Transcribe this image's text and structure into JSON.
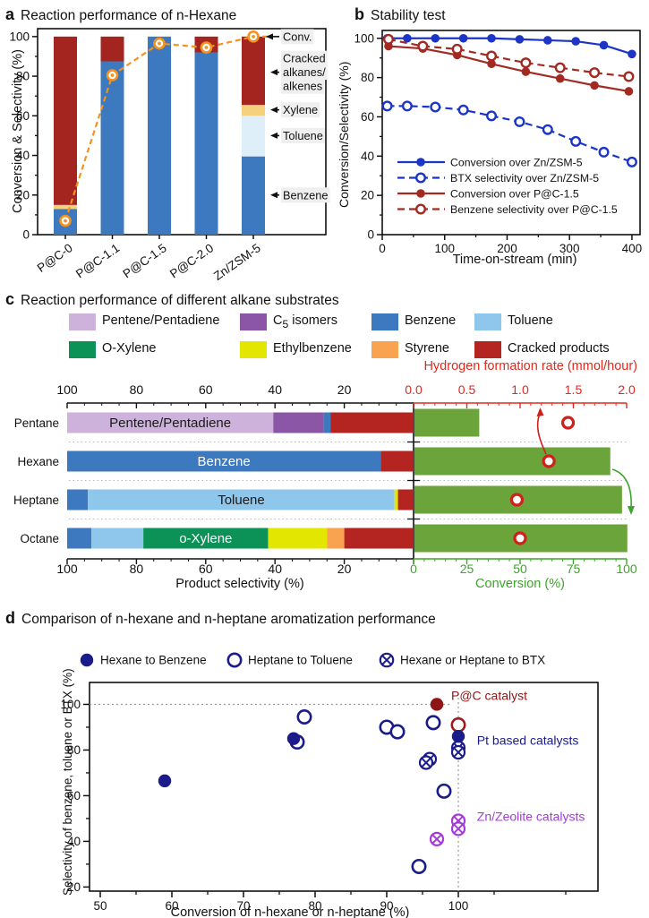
{
  "chart_data": [
    {
      "id": "a",
      "type": "bar",
      "panel_label": "a",
      "title": "Reaction performance of n-Hexane",
      "ylabel": "Conversion & Selectivity (%)",
      "ylim": [
        0,
        104
      ],
      "yticks": [
        0,
        20,
        40,
        60,
        80,
        100
      ],
      "categories": [
        "P@C-0",
        "P@C-1.1",
        "P@C-1.5",
        "P@C-2.0",
        "Zn/ZSM-5"
      ],
      "stack_series": [
        {
          "name": "Benzene",
          "color": "#3C79BE",
          "values": [
            13,
            87.5,
            100,
            92,
            39.5
          ]
        },
        {
          "name": "Toluene",
          "color": "#DEEFFA",
          "values": [
            0,
            0,
            0,
            0,
            20.5
          ]
        },
        {
          "name": "Xylene",
          "color": "#F5D17D",
          "values": [
            2,
            0,
            0,
            0,
            5.5
          ]
        },
        {
          "name": "Cracked alkanes/alkenes",
          "color": "#A4251F",
          "values": [
            85,
            12.5,
            0,
            8,
            34.5
          ]
        }
      ],
      "line_series": {
        "name": "Conv.",
        "color": "#F5921E",
        "values": [
          7,
          80.5,
          96.5,
          94.5,
          100
        ]
      },
      "annotations": [
        {
          "lines": [
            "Conv."
          ],
          "y": 100
        },
        {
          "lines": [
            "Cracked",
            "alkanes/",
            "alkenes"
          ],
          "y": 82
        },
        {
          "lines": [
            "Xylene"
          ],
          "y": 63
        },
        {
          "lines": [
            "Toluene"
          ],
          "y": 50
        },
        {
          "lines": [
            "Benzene"
          ],
          "y": 20
        }
      ],
      "label_bg": "#EFEFEF"
    },
    {
      "id": "b",
      "type": "line",
      "panel_label": "b",
      "title": "Stability test",
      "xlabel": "Time-on-stream (min)",
      "ylabel": "Conversion/Selectivity (%)",
      "xlim": [
        0,
        413
      ],
      "ylim": [
        0,
        104
      ],
      "xticks": [
        0,
        100,
        200,
        300,
        400
      ],
      "yticks": [
        0,
        20,
        40,
        60,
        80,
        100
      ],
      "series": [
        {
          "name": "Conversion over Zn/ZSM-5",
          "color": "#1C35C4",
          "marker": "filled",
          "dash": false,
          "x": [
            8,
            40,
            85,
            130,
            175,
            220,
            265,
            310,
            355,
            400
          ],
          "y": [
            100,
            100,
            100,
            100,
            100,
            99.5,
            99,
            98.5,
            96.5,
            92
          ]
        },
        {
          "name": "BTX selectivity over Zn/ZSM-5",
          "color": "#1C35C4",
          "marker": "open",
          "dash": true,
          "x": [
            8,
            40,
            85,
            130,
            175,
            220,
            265,
            310,
            355,
            400
          ],
          "y": [
            65.5,
            65.5,
            65,
            63.5,
            60.5,
            57.5,
            53.5,
            47.5,
            42,
            37
          ]
        },
        {
          "name": "Conversion over P@C-1.5",
          "color": "#A32A22",
          "marker": "filled",
          "dash": false,
          "x": [
            10,
            65,
            120,
            175,
            230,
            285,
            340,
            395
          ],
          "y": [
            96,
            94.8,
            91.5,
            87,
            83,
            79.5,
            76,
            73
          ]
        },
        {
          "name": "Benzene selectivity over P@C-1.5",
          "color": "#A32A22",
          "marker": "open",
          "dash": true,
          "x": [
            10,
            65,
            120,
            175,
            230,
            285,
            340,
            395
          ],
          "y": [
            99.5,
            96,
            94.5,
            91,
            87.5,
            85,
            82.5,
            80.5
          ]
        }
      ]
    },
    {
      "id": "c",
      "type": "bar",
      "panel_label": "c",
      "title": "Reaction performance of different alkane substrates",
      "categories": [
        "Pentane",
        "Hexane",
        "Heptane",
        "Octane"
      ],
      "legend": [
        {
          "name": "Pentene/Pentadiene",
          "color": "#CDB3DB"
        },
        {
          "name": "C5 isomers",
          "pre": "C",
          "sub": "5",
          "post": " isomers",
          "color": "#8A56A5"
        },
        {
          "name": "Benzene",
          "color": "#3C79BE"
        },
        {
          "name": "Toluene",
          "color": "#8FC6EC"
        },
        {
          "name": "O-Xylene",
          "color": "#0C9157"
        },
        {
          "name": "Ethylbenzene",
          "color": "#E3E600"
        },
        {
          "name": "Styrene",
          "color": "#F9A351"
        },
        {
          "name": "Cracked products",
          "color": "#B42421"
        }
      ],
      "stack_series": [
        {
          "name": "Pentene/Pentadiene",
          "color": "#CDB3DB",
          "values": [
            59.5,
            0,
            0,
            0
          ]
        },
        {
          "name": "C5 isomers",
          "color": "#8A56A5",
          "values": [
            14.5,
            0,
            0,
            0
          ]
        },
        {
          "name": "Benzene",
          "color": "#3C79BE",
          "values": [
            2,
            90.5,
            6,
            7
          ]
        },
        {
          "name": "Toluene",
          "color": "#8FC6EC",
          "values": [
            0,
            0,
            88.5,
            15
          ]
        },
        {
          "name": "O-Xylene",
          "color": "#0C9157",
          "values": [
            0,
            0,
            0,
            36
          ]
        },
        {
          "name": "Ethylbenzene",
          "color": "#E3E600",
          "values": [
            0,
            0,
            1,
            17
          ]
        },
        {
          "name": "Styrene",
          "color": "#F9A351",
          "values": [
            0,
            0,
            0,
            5
          ]
        },
        {
          "name": "Cracked products",
          "color": "#B42421",
          "values": [
            24,
            9.5,
            4.5,
            20
          ]
        }
      ],
      "bar_labels": [
        {
          "series": "Pentene/Pentadiene",
          "text": "Pentene/Pentadiene",
          "color": "#1a1a1a"
        },
        {
          "series": "Benzene",
          "text": "Benzene",
          "color": "#ffffff"
        },
        {
          "series": "Toluene",
          "text": "Toluene",
          "color": "#1a1a1a"
        },
        {
          "series": "O-Xylene",
          "text": "o-Xylene",
          "color": "#ffffff"
        }
      ],
      "selectivity_axis": {
        "label": "Product selectivity (%)",
        "ticks": [
          100,
          80,
          60,
          40,
          20
        ]
      },
      "conversion": {
        "label": "Conversion (%)",
        "color": "#3FA32D",
        "bar_color": "#6BA43B",
        "ticks": [
          0,
          25,
          50,
          75,
          100
        ],
        "values": [
          30.5,
          92,
          97.5,
          100
        ]
      },
      "h2": {
        "label": "Hydrogen formation rate (mmol/hour)",
        "color": "#E2291D",
        "circle_color": "#D0201A",
        "tick_labels": [
          "0.0",
          "0.5",
          "1.0",
          "1.5",
          "2.0"
        ],
        "range": [
          0,
          2
        ],
        "values": [
          1.45,
          1.27,
          0.97,
          1.0
        ]
      }
    },
    {
      "id": "d",
      "type": "scatter",
      "panel_label": "d",
      "title": "Comparison of n-hexane and n-heptane aromatization performance",
      "xlabel": "Conversion of n-hexane or n-heptane (%)",
      "ylabel": "Selectivity of benzene, toluene or BTX (%)",
      "xticks": [
        50,
        60,
        70,
        80,
        90,
        100
      ],
      "yticks": [
        20,
        40,
        60,
        80,
        100
      ],
      "ref_lines": {
        "x": 100,
        "y": 100
      },
      "legend": [
        {
          "label": "Hexane to Benzene",
          "marker": "filled",
          "color": "#1B1B8A"
        },
        {
          "label": "Heptane to Toluene",
          "marker": "open",
          "color": "#1B1B8A"
        },
        {
          "label": "Hexane or Heptane to BTX",
          "marker": "crossed",
          "color": "#1B1B8A"
        }
      ],
      "series": [
        {
          "name": "Pt catalysts BTX",
          "marker": "crossed",
          "color": "#1B1B8A",
          "points": [
            [
              96,
              76
            ],
            [
              95.5,
              74.5
            ],
            [
              100,
              81
            ],
            [
              100,
              79
            ]
          ]
        },
        {
          "name": "Zn/Zeolite catalysts BTX",
          "marker": "crossed",
          "color": "#A33BDB",
          "points": [
            [
              100,
              49
            ],
            [
              100,
              45.5
            ],
            [
              97,
              41
            ]
          ]
        },
        {
          "name": "Heptane to Toluene",
          "marker": "open",
          "color": "#1B1B8A",
          "points": [
            [
              78.5,
              94.5
            ],
            [
              77.5,
              83.5
            ],
            [
              90,
              90
            ],
            [
              91.5,
              88
            ],
            [
              96.5,
              92
            ],
            [
              98,
              62
            ],
            [
              94.5,
              29
            ]
          ]
        },
        {
          "name": "P@C benzene selectivity",
          "marker": "open",
          "color": "#9E1C1C",
          "points": [
            [
              100,
              91
            ]
          ]
        },
        {
          "name": "Hexane to Benzene",
          "marker": "filled",
          "color": "#1B1B8A",
          "points": [
            [
              59,
              66.5
            ],
            [
              77,
              85
            ],
            [
              100,
              86
            ]
          ]
        },
        {
          "name": "P@C catalyst",
          "marker": "filled",
          "color": "#8E1616",
          "points": [
            [
              97,
              100
            ]
          ]
        }
      ],
      "annotations": [
        {
          "text": "P@C catalyst",
          "color": "#8E1616",
          "x": 99.0,
          "y": 102.0
        },
        {
          "text": "Pt based catalysts",
          "color": "#1B1B8A",
          "x": 102.6,
          "y": 82.4
        },
        {
          "text": "Zn/Zeolite catalysts",
          "color": "#A33BDB",
          "x": 102.6,
          "y": 49.0
        }
      ]
    }
  ]
}
